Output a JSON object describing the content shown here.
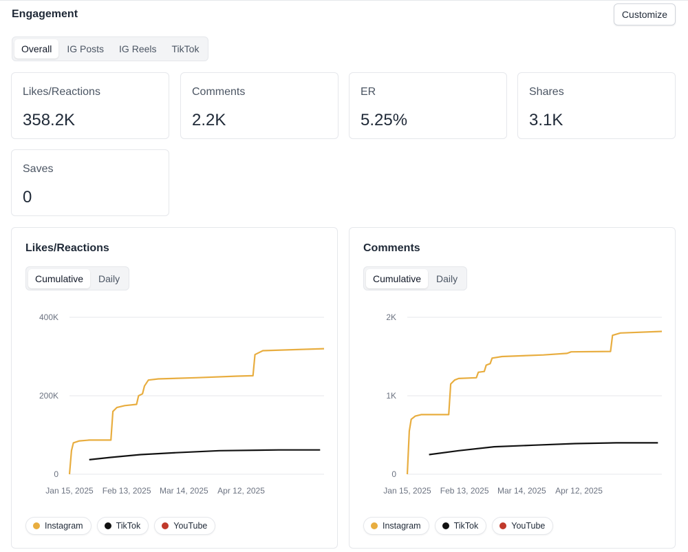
{
  "section": {
    "title": "Engagement",
    "customize_label": "Customize"
  },
  "tabs": [
    {
      "label": "Overall",
      "active": true
    },
    {
      "label": "IG Posts",
      "active": false
    },
    {
      "label": "IG Reels",
      "active": false
    },
    {
      "label": "TikTok",
      "active": false
    }
  ],
  "metrics": [
    {
      "label": "Likes/Reactions",
      "value": "358.2K"
    },
    {
      "label": "Comments",
      "value": "2.2K"
    },
    {
      "label": "ER",
      "value": "5.25%"
    },
    {
      "label": "Shares",
      "value": "3.1K"
    },
    {
      "label": "Saves",
      "value": "0"
    }
  ],
  "charts_ui": [
    {
      "title": "Likes/Reactions",
      "toggle": [
        "Cumulative",
        "Daily"
      ],
      "active_toggle": "Cumulative"
    },
    {
      "title": "Comments",
      "toggle": [
        "Cumulative",
        "Daily"
      ],
      "active_toggle": "Cumulative"
    }
  ],
  "legend": [
    {
      "label": "Instagram",
      "color": "#e8ad3f"
    },
    {
      "label": "TikTok",
      "color": "#111111"
    },
    {
      "label": "YouTube",
      "color": "#c0392b"
    }
  ],
  "chart_data": [
    {
      "type": "line",
      "title": "Likes/Reactions",
      "x_ticks": [
        "Jan 15, 2025",
        "Feb 13, 2025",
        "Mar 14, 2025",
        "Apr 12, 2025"
      ],
      "y_ticks": [
        "0",
        "200K",
        "400K"
      ],
      "ylim": [
        0,
        400000
      ],
      "xlim": [
        "2025-01-15",
        "2025-05-24"
      ],
      "grid": true,
      "legend_position": "bottom-left",
      "series": [
        {
          "name": "Instagram",
          "color": "#e8ad3f",
          "points": [
            [
              "2025-01-15",
              0
            ],
            [
              "2025-01-16",
              60000
            ],
            [
              "2025-01-17",
              80000
            ],
            [
              "2025-01-20",
              85000
            ],
            [
              "2025-01-25",
              87000
            ],
            [
              "2025-02-05",
              87000
            ],
            [
              "2025-02-06",
              160000
            ],
            [
              "2025-02-08",
              170000
            ],
            [
              "2025-02-12",
              175000
            ],
            [
              "2025-02-18",
              178000
            ],
            [
              "2025-02-19",
              200000
            ],
            [
              "2025-02-21",
              205000
            ],
            [
              "2025-02-22",
              225000
            ],
            [
              "2025-02-24",
              240000
            ],
            [
              "2025-03-01",
              243000
            ],
            [
              "2025-03-20",
              246000
            ],
            [
              "2025-04-10",
              250000
            ],
            [
              "2025-04-18",
              251000
            ],
            [
              "2025-04-19",
              305000
            ],
            [
              "2025-04-23",
              315000
            ],
            [
              "2025-05-24",
              320000
            ]
          ]
        },
        {
          "name": "TikTok",
          "color": "#111111",
          "points": [
            [
              "2025-01-25",
              37000
            ],
            [
              "2025-02-05",
              43000
            ],
            [
              "2025-02-20",
              50000
            ],
            [
              "2025-03-10",
              55000
            ],
            [
              "2025-04-01",
              60000
            ],
            [
              "2025-05-01",
              62000
            ],
            [
              "2025-05-22",
              62000
            ]
          ]
        }
      ]
    },
    {
      "type": "line",
      "title": "Comments",
      "x_ticks": [
        "Jan 15, 2025",
        "Feb 13, 2025",
        "Mar 14, 2025",
        "Apr 12, 2025"
      ],
      "y_ticks": [
        "0",
        "1K",
        "2K"
      ],
      "ylim": [
        0,
        2000
      ],
      "xlim": [
        "2025-01-15",
        "2025-05-24"
      ],
      "grid": true,
      "legend_position": "bottom-left",
      "series": [
        {
          "name": "Instagram",
          "color": "#e8ad3f",
          "points": [
            [
              "2025-01-15",
              0
            ],
            [
              "2025-01-16",
              550
            ],
            [
              "2025-01-17",
              700
            ],
            [
              "2025-01-19",
              740
            ],
            [
              "2025-01-22",
              760
            ],
            [
              "2025-02-05",
              760
            ],
            [
              "2025-02-06",
              1150
            ],
            [
              "2025-02-08",
              1200
            ],
            [
              "2025-02-10",
              1220
            ],
            [
              "2025-02-19",
              1230
            ],
            [
              "2025-02-20",
              1300
            ],
            [
              "2025-02-23",
              1310
            ],
            [
              "2025-02-24",
              1390
            ],
            [
              "2025-02-26",
              1410
            ],
            [
              "2025-02-27",
              1480
            ],
            [
              "2025-03-04",
              1500
            ],
            [
              "2025-03-25",
              1520
            ],
            [
              "2025-04-06",
              1540
            ],
            [
              "2025-04-08",
              1560
            ],
            [
              "2025-04-28",
              1565
            ],
            [
              "2025-04-29",
              1770
            ],
            [
              "2025-05-03",
              1800
            ],
            [
              "2025-05-24",
              1820
            ]
          ]
        },
        {
          "name": "TikTok",
          "color": "#111111",
          "points": [
            [
              "2025-01-26",
              250
            ],
            [
              "2025-02-10",
              300
            ],
            [
              "2025-02-28",
              350
            ],
            [
              "2025-03-20",
              370
            ],
            [
              "2025-04-10",
              390
            ],
            [
              "2025-05-01",
              400
            ],
            [
              "2025-05-22",
              400
            ]
          ]
        }
      ]
    }
  ]
}
